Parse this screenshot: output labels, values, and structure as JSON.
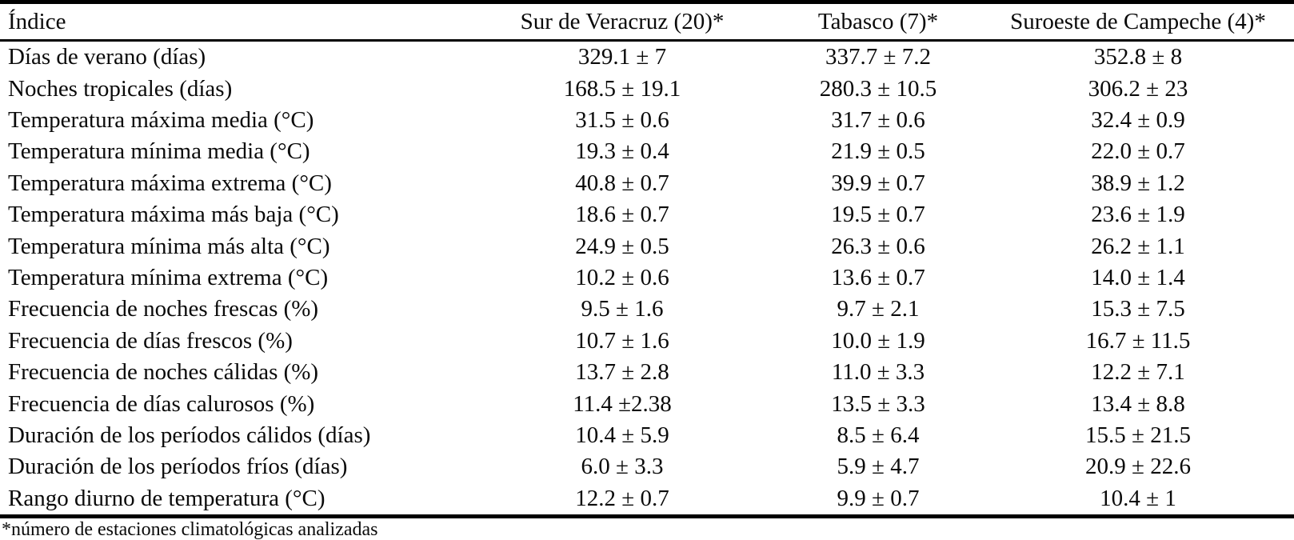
{
  "table": {
    "columns": [
      {
        "label": "Índice"
      },
      {
        "label": "Sur de Veracruz (20)*"
      },
      {
        "label": "Tabasco (7)*"
      },
      {
        "label": "Suroeste de Campeche (4)*"
      }
    ],
    "rows": [
      {
        "index": "Días de verano (días)",
        "veracruz": "329.1 ± 7",
        "tabasco": "337.7 ± 7.2",
        "campeche": "352.8 ± 8"
      },
      {
        "index": "Noches tropicales (días)",
        "veracruz": "168.5 ± 19.1",
        "tabasco": "280.3 ± 10.5",
        "campeche": "306.2 ± 23"
      },
      {
        "index": "Temperatura máxima media (°C)",
        "veracruz": "31.5 ± 0.6",
        "tabasco": "31.7 ± 0.6",
        "campeche": "32.4 ± 0.9"
      },
      {
        "index": "Temperatura mínima media (°C)",
        "veracruz": "19.3 ± 0.4",
        "tabasco": "21.9 ± 0.5",
        "campeche": "22.0 ± 0.7"
      },
      {
        "index": "Temperatura máxima extrema (°C)",
        "veracruz": "40.8 ± 0.7",
        "tabasco": "39.9 ± 0.7",
        "campeche": "38.9 ± 1.2"
      },
      {
        "index": "Temperatura máxima más baja (°C)",
        "veracruz": "18.6 ± 0.7",
        "tabasco": "19.5 ± 0.7",
        "campeche": "23.6 ± 1.9"
      },
      {
        "index": "Temperatura mínima más alta (°C)",
        "veracruz": "24.9 ± 0.5",
        "tabasco": "26.3 ± 0.6",
        "campeche": "26.2 ± 1.1"
      },
      {
        "index": "Temperatura mínima extrema (°C)",
        "veracruz": "10.2 ± 0.6",
        "tabasco": "13.6 ± 0.7",
        "campeche": "14.0 ± 1.4"
      },
      {
        "index": "Frecuencia de noches frescas (%)",
        "veracruz": "9.5 ± 1.6",
        "tabasco": "9.7 ± 2.1",
        "campeche": "15.3 ± 7.5"
      },
      {
        "index": "Frecuencia de días frescos (%)",
        "veracruz": "10.7 ± 1.6",
        "tabasco": "10.0 ± 1.9",
        "campeche": "16.7 ± 11.5"
      },
      {
        "index": "Frecuencia de noches cálidas (%)",
        "veracruz": "13.7 ± 2.8",
        "tabasco": "11.0 ± 3.3",
        "campeche": "12.2 ± 7.1"
      },
      {
        "index": "Frecuencia de días calurosos (%)",
        "veracruz": "11.4 ±2.38",
        "tabasco": "13.5 ± 3.3",
        "campeche": "13.4 ± 8.8"
      },
      {
        "index": "Duración de los períodos cálidos (días)",
        "veracruz": "10.4 ± 5.9",
        "tabasco": "8.5 ± 6.4",
        "campeche": "15.5 ± 21.5"
      },
      {
        "index": "Duración de los períodos fríos (días)",
        "veracruz": "6.0 ± 3.3",
        "tabasco": "5.9 ± 4.7",
        "campeche": "20.9 ± 22.6"
      },
      {
        "index": "Rango diurno de temperatura (°C)",
        "veracruz": "12.2 ± 0.7",
        "tabasco": "9.9 ± 0.7",
        "campeche": "10.4 ± 1"
      }
    ],
    "footnote": "*número de estaciones climatológicas analizadas"
  }
}
